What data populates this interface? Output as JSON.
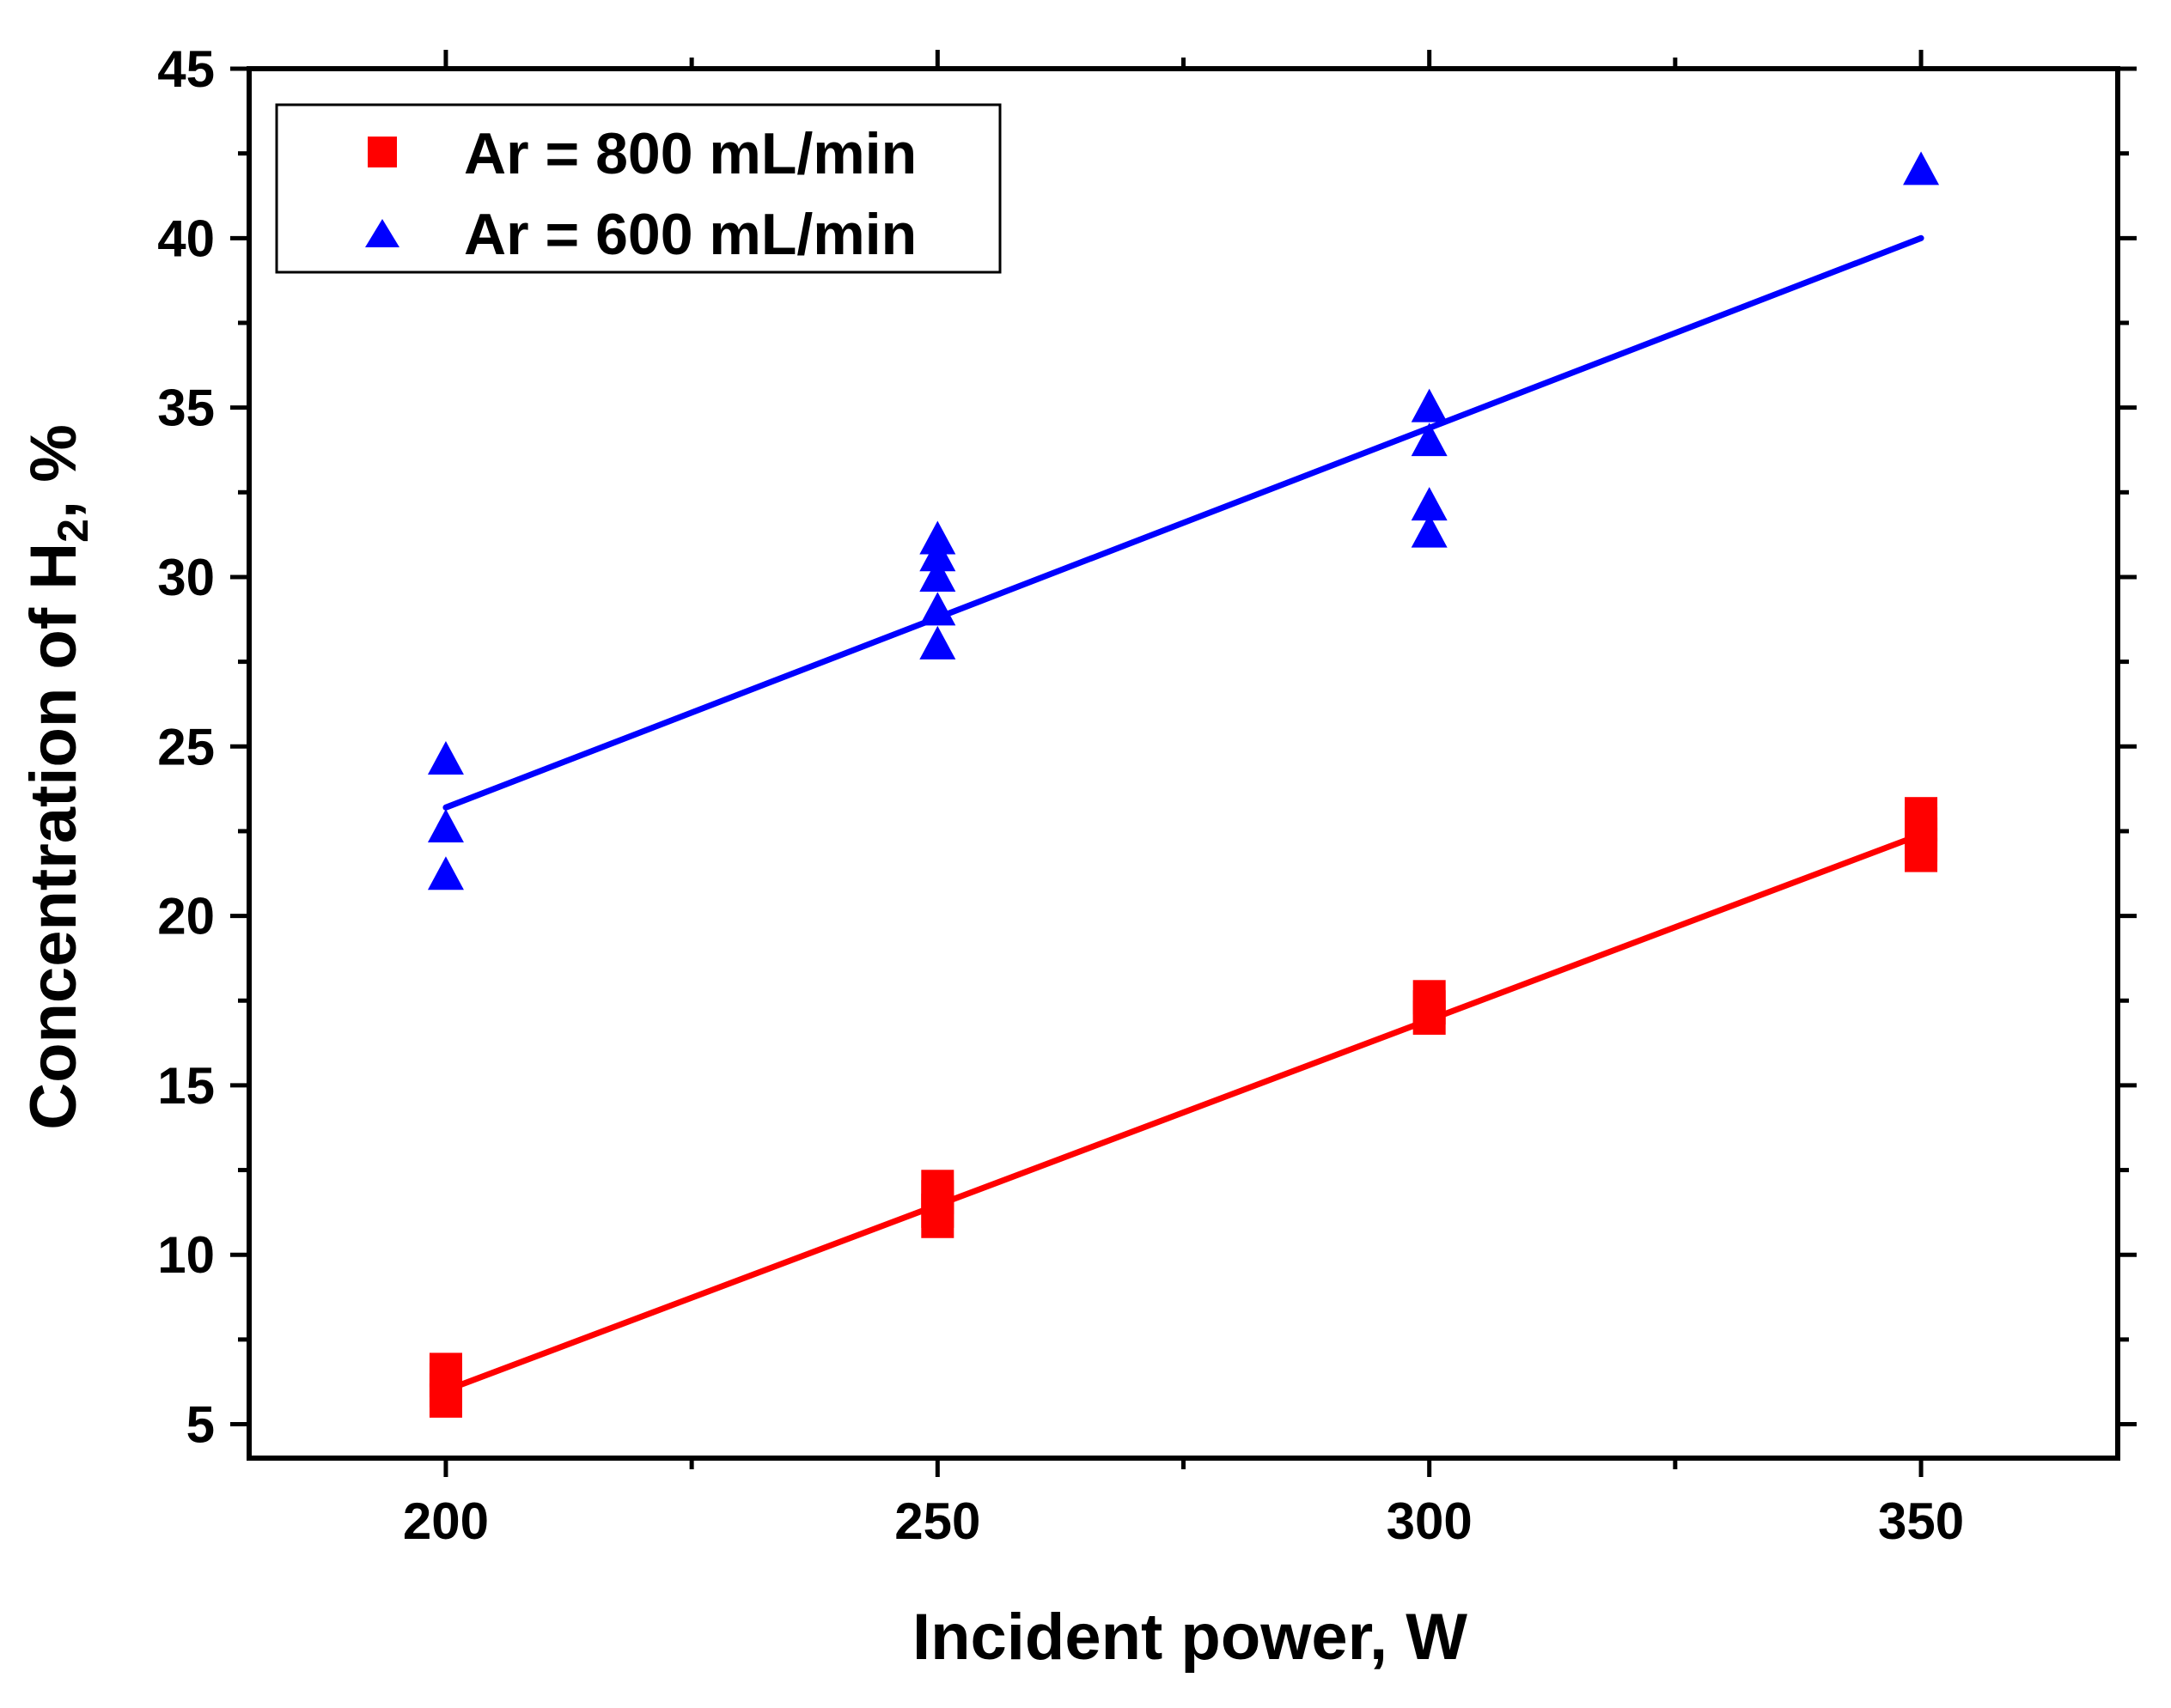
{
  "chart_data": {
    "type": "scatter",
    "title": "",
    "xlabel": "Incident power, W",
    "ylabel": {
      "prefix": "Concentration of H",
      "subscript": "2",
      "suffix": ", %"
    },
    "xlim": [
      180,
      370
    ],
    "ylim": [
      4,
      45
    ],
    "xticks": [
      200,
      250,
      300,
      350
    ],
    "xticks_minor": [
      225,
      275,
      325
    ],
    "yticks": [
      5,
      10,
      15,
      20,
      25,
      30,
      35,
      40,
      45
    ],
    "yticks_minor": [
      7.5,
      12.5,
      17.5,
      22.5,
      27.5,
      32.5,
      37.5,
      42.5
    ],
    "xtick_labels": [
      "200",
      "250",
      "300",
      "350"
    ],
    "ytick_labels": [
      "5",
      "10",
      "15",
      "20",
      "25",
      "30",
      "35",
      "40",
      "45"
    ],
    "legend_position": "top-left",
    "series": [
      {
        "name": "Ar = 800 mL/min",
        "marker": "square",
        "color": "#ff0000",
        "points": [
          {
            "x": 200,
            "y": 5.7
          },
          {
            "x": 200,
            "y": 6.0
          },
          {
            "x": 200,
            "y": 6.3
          },
          {
            "x": 200,
            "y": 6.6
          },
          {
            "x": 250,
            "y": 11.0
          },
          {
            "x": 250,
            "y": 11.3
          },
          {
            "x": 250,
            "y": 11.7
          },
          {
            "x": 250,
            "y": 12.0
          },
          {
            "x": 300,
            "y": 17.0
          },
          {
            "x": 300,
            "y": 17.3
          },
          {
            "x": 300,
            "y": 17.6
          },
          {
            "x": 350,
            "y": 21.8
          },
          {
            "x": 350,
            "y": 22.1
          },
          {
            "x": 350,
            "y": 22.4
          },
          {
            "x": 350,
            "y": 22.7
          },
          {
            "x": 350,
            "y": 23.0
          }
        ],
        "fit": {
          "x": [
            200,
            350
          ],
          "y": [
            6.0,
            22.4
          ]
        }
      },
      {
        "name": "Ar = 600 mL/min",
        "marker": "triangle",
        "color": "#0000ff",
        "points": [
          {
            "x": 200,
            "y": 21.2
          },
          {
            "x": 200,
            "y": 22.6
          },
          {
            "x": 200,
            "y": 24.6
          },
          {
            "x": 250,
            "y": 28.0
          },
          {
            "x": 250,
            "y": 29.0
          },
          {
            "x": 250,
            "y": 30.0
          },
          {
            "x": 250,
            "y": 30.6
          },
          {
            "x": 250,
            "y": 31.1
          },
          {
            "x": 300,
            "y": 31.3
          },
          {
            "x": 300,
            "y": 32.1
          },
          {
            "x": 300,
            "y": 34.0
          },
          {
            "x": 300,
            "y": 35.0
          },
          {
            "x": 350,
            "y": 42.0
          }
        ],
        "fit": {
          "x": [
            200,
            350
          ],
          "y": [
            23.2,
            40.0
          ]
        }
      }
    ]
  }
}
